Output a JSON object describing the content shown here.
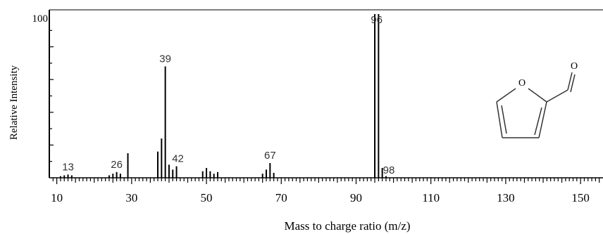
{
  "chart_data": {
    "type": "bar",
    "xlabel": "Mass to charge ratio (m/z)",
    "ylabel": "Relative Intensity",
    "xlim": [
      8,
      156
    ],
    "ylim": [
      0,
      100
    ],
    "x_ticks": [
      10,
      30,
      50,
      70,
      90,
      110,
      130,
      150
    ],
    "y_tick_label": "100",
    "peak_labels": [
      {
        "mz": 13,
        "label": "13"
      },
      {
        "mz": 26,
        "label": "26"
      },
      {
        "mz": 39,
        "label": "39"
      },
      {
        "mz": 42,
        "label": "42"
      },
      {
        "mz": 67,
        "label": "67"
      },
      {
        "mz": 96,
        "label": "96"
      },
      {
        "mz": 98,
        "label": "98"
      }
    ],
    "peaks": [
      {
        "mz": 11,
        "intensity": 1
      },
      {
        "mz": 12,
        "intensity": 1.5
      },
      {
        "mz": 13,
        "intensity": 2
      },
      {
        "mz": 14,
        "intensity": 1.5
      },
      {
        "mz": 24,
        "intensity": 1.5
      },
      {
        "mz": 25,
        "intensity": 2.5
      },
      {
        "mz": 26,
        "intensity": 3.5
      },
      {
        "mz": 27,
        "intensity": 2.5
      },
      {
        "mz": 29,
        "intensity": 15
      },
      {
        "mz": 37,
        "intensity": 16
      },
      {
        "mz": 38,
        "intensity": 24
      },
      {
        "mz": 39,
        "intensity": 68
      },
      {
        "mz": 40,
        "intensity": 8
      },
      {
        "mz": 41,
        "intensity": 5
      },
      {
        "mz": 42,
        "intensity": 7
      },
      {
        "mz": 49,
        "intensity": 4
      },
      {
        "mz": 50,
        "intensity": 6
      },
      {
        "mz": 51,
        "intensity": 4
      },
      {
        "mz": 52,
        "intensity": 2.5
      },
      {
        "mz": 53,
        "intensity": 3.5
      },
      {
        "mz": 65,
        "intensity": 2.5
      },
      {
        "mz": 66,
        "intensity": 5
      },
      {
        "mz": 67,
        "intensity": 9
      },
      {
        "mz": 68,
        "intensity": 3
      },
      {
        "mz": 95,
        "intensity": 100
      },
      {
        "mz": 96,
        "intensity": 100
      },
      {
        "mz": 97,
        "intensity": 6
      },
      {
        "mz": 98,
        "intensity": 1
      }
    ],
    "structure": {
      "atom_label": "O",
      "carbonyl_label": "O",
      "name": "furfural"
    }
  }
}
